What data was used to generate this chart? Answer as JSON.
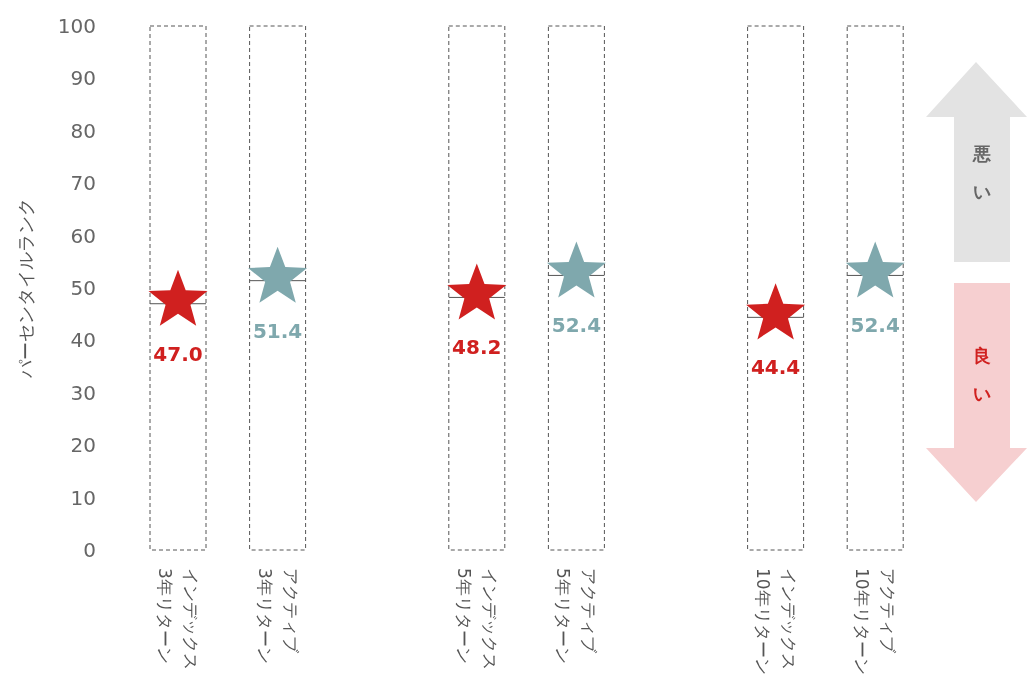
{
  "chart_data": {
    "type": "scatter",
    "ylabel": "パーセンタイルランク",
    "categories": [
      "インデックス\n3年リターン",
      "アクティブ\n3年リターン",
      null,
      "インデックス\n5年リターン",
      "アクティブ\n5年リターン",
      null,
      "インデックス\n10年リターン",
      "アクティブ\n10年リターン"
    ],
    "ylim": [
      0,
      100
    ],
    "yticks": [
      0,
      10,
      20,
      30,
      40,
      50,
      60,
      70,
      80,
      90,
      100
    ],
    "grid": false,
    "marker": "star",
    "series": [
      {
        "type": "bar",
        "color": "#ffffff",
        "line_style": "dashed",
        "values": [
          100,
          100,
          null,
          100,
          100,
          null,
          100,
          100
        ]
      },
      {
        "colors": [
          "#d0201f",
          "#7fa8ad",
          null,
          "#d0201f",
          "#7fa8ad",
          null,
          "#d0201f",
          "#7fa8ad"
        ],
        "values": [
          47.0,
          51.4,
          null,
          48.2,
          52.4,
          null,
          44.4,
          52.4
        ],
        "value_labels": [
          "47.0",
          "51.4",
          null,
          "48.2",
          "52.4",
          null,
          "44.4",
          "52.4"
        ]
      }
    ],
    "annotations": [
      "悪い",
      "良い"
    ]
  }
}
